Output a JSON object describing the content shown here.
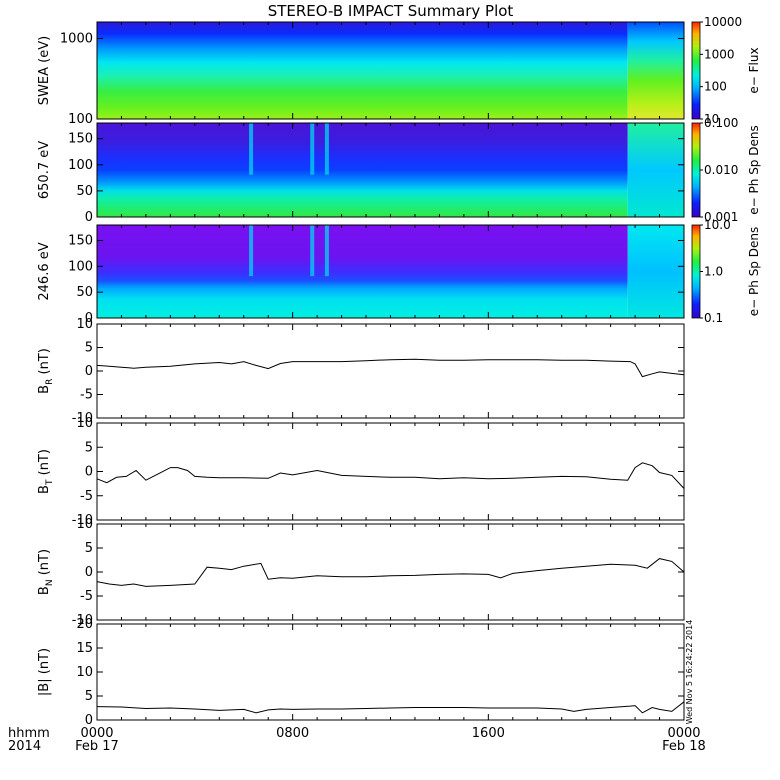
{
  "title": "STEREO-B IMPACT Summary Plot",
  "stamp": "Wed Nov 5 16:24:22 2014",
  "time_axis": {
    "label_line1": "hhmm",
    "label_line2": "2014",
    "ticks": [
      {
        "hour": 0,
        "top": "0000",
        "bottom": "Feb 17"
      },
      {
        "hour": 8,
        "top": "0800",
        "bottom": ""
      },
      {
        "hour": 16,
        "top": "1600",
        "bottom": ""
      },
      {
        "hour": 24,
        "top": "0000",
        "bottom": "Feb 18"
      }
    ],
    "range_hours": [
      0,
      24
    ]
  },
  "chart_data": [
    {
      "type": "heatmap",
      "ylabel": "SWEA (eV)",
      "yscale": "log",
      "ylim": [
        100,
        1600
      ],
      "yticks": [
        {
          "v": 100,
          "label": "100"
        },
        {
          "v": 1000,
          "label": "1000"
        }
      ],
      "colorbar": {
        "label": "e− Flux",
        "scale": "log",
        "ticks": [
          "10000",
          "1000",
          "100",
          "10"
        ],
        "palette": "rainbow"
      },
      "pattern": "flux high at low energies (green-yellow), decreasing to blue at high energies; band shifts upward after ~22:00"
    },
    {
      "type": "heatmap",
      "ylabel": "650.7 eV",
      "ylim": [
        0,
        180
      ],
      "yticks": [
        {
          "v": 0,
          "label": "0"
        },
        {
          "v": 50,
          "label": "50"
        },
        {
          "v": 100,
          "label": "100"
        },
        {
          "v": 150,
          "label": "150"
        }
      ],
      "colorbar": {
        "label": "e− Ph Sp Dens",
        "scale": "log",
        "ticks": [
          "0.100",
          "0.010",
          "0.001"
        ],
        "palette": "rainbow"
      },
      "pattern": "pitch angle distribution, green at low angles, blue-purple at high angles, strahl gaps near 06:00 and 09:00, change at ~22:30"
    },
    {
      "type": "heatmap",
      "ylabel": "246.6 eV",
      "ylim": [
        0,
        180
      ],
      "yticks": [
        {
          "v": 0,
          "label": "0"
        },
        {
          "v": 50,
          "label": "50"
        },
        {
          "v": 100,
          "label": "100"
        },
        {
          "v": 150,
          "label": "150"
        }
      ],
      "colorbar": {
        "label": "e− Ph Sp Dens",
        "scale": "log",
        "ticks": [
          "10.0",
          "1.0",
          "0.1"
        ],
        "palette": "rainbow"
      },
      "pattern": "cyan at low pitch angles, purple above ~80 deg, gaps near 06:30 and 09:00, broad cyan after ~22:30"
    },
    {
      "type": "line",
      "ylabel": "B_R (nT)",
      "ylabel_main": "B",
      "ylabel_sub": "R",
      "ylabel_unit": "(nT)",
      "ylim": [
        -10,
        10
      ],
      "yticks": [
        -10,
        -5,
        0,
        5,
        10
      ],
      "x": [
        0,
        0.5,
        1,
        1.5,
        2,
        3,
        4,
        5,
        5.5,
        6,
        6.5,
        7,
        7.5,
        8,
        9,
        10,
        11,
        12,
        13,
        14,
        15,
        16,
        17,
        18,
        19,
        20,
        21,
        21.8,
        22.0,
        22.3,
        22.7,
        23.0,
        23.5,
        24
      ],
      "y": [
        1.2,
        1.0,
        0.8,
        0.6,
        0.8,
        1.0,
        1.5,
        1.8,
        1.5,
        2.0,
        1.2,
        0.5,
        1.6,
        2.0,
        2.0,
        2.0,
        2.2,
        2.4,
        2.5,
        2.3,
        2.3,
        2.4,
        2.4,
        2.4,
        2.3,
        2.3,
        2.1,
        2.0,
        1.5,
        -1.2,
        -0.6,
        -0.2,
        -0.5,
        -0.8
      ]
    },
    {
      "type": "line",
      "ylabel": "B_T (nT)",
      "ylabel_main": "B",
      "ylabel_sub": "T",
      "ylabel_unit": "(nT)",
      "ylim": [
        -10,
        10
      ],
      "yticks": [
        -10,
        -5,
        0,
        5,
        10
      ],
      "x": [
        0,
        0.4,
        0.8,
        1.2,
        1.6,
        2,
        2.5,
        3,
        3.3,
        3.7,
        4,
        4.5,
        5,
        6,
        7,
        7.5,
        8,
        9,
        10,
        11,
        12,
        13,
        14,
        15,
        16,
        17,
        18,
        19,
        20,
        21,
        21.7,
        22.0,
        22.3,
        22.7,
        23.0,
        23.5,
        24
      ],
      "y": [
        -1.5,
        -2.3,
        -1.2,
        -1.0,
        0.2,
        -1.8,
        -0.5,
        0.8,
        0.8,
        0.2,
        -1.0,
        -1.2,
        -1.3,
        -1.3,
        -1.4,
        -0.3,
        -0.7,
        0.2,
        -0.8,
        -1.0,
        -1.2,
        -1.2,
        -1.5,
        -1.3,
        -1.5,
        -1.4,
        -1.2,
        -1.0,
        -1.1,
        -1.6,
        -1.8,
        0.8,
        1.8,
        1.2,
        -0.2,
        -0.8,
        -3.5
      ]
    },
    {
      "type": "line",
      "ylabel": "B_N (nT)",
      "ylabel_main": "B",
      "ylabel_sub": "N",
      "ylabel_unit": "(nT)",
      "ylim": [
        -10,
        10
      ],
      "yticks": [
        -10,
        -5,
        0,
        5,
        10
      ],
      "x": [
        0,
        0.5,
        1,
        1.5,
        2,
        3,
        4,
        4.5,
        5,
        5.5,
        6,
        6.7,
        7,
        7.5,
        8,
        9,
        10,
        11,
        12,
        13,
        14,
        15,
        16,
        16.5,
        17,
        18,
        19,
        20,
        21,
        22,
        22.5,
        23,
        23.5,
        24
      ],
      "y": [
        -2.0,
        -2.5,
        -2.8,
        -2.5,
        -3.0,
        -2.8,
        -2.5,
        1.0,
        0.8,
        0.5,
        1.2,
        1.8,
        -1.5,
        -1.2,
        -1.3,
        -0.8,
        -1.0,
        -1.0,
        -0.8,
        -0.7,
        -0.5,
        -0.4,
        -0.5,
        -1.2,
        -0.3,
        0.3,
        0.8,
        1.2,
        1.6,
        1.4,
        0.8,
        2.8,
        2.2,
        0.0
      ]
    },
    {
      "type": "line",
      "ylabel": "|B| (nT)",
      "ylabel_main": "|B|",
      "ylabel_sub": "",
      "ylabel_unit": "(nT)",
      "ylim": [
        0,
        20
      ],
      "yticks": [
        0,
        5,
        10,
        15,
        20
      ],
      "x": [
        0,
        1,
        2,
        3,
        4,
        5,
        6,
        6.5,
        7,
        7.5,
        8,
        9,
        10,
        11,
        12,
        13,
        14,
        15,
        16,
        17,
        18,
        19,
        19.5,
        20,
        21,
        21.8,
        22.0,
        22.3,
        22.7,
        23.0,
        23.5,
        24
      ],
      "y": [
        2.8,
        2.7,
        2.4,
        2.5,
        2.3,
        2.0,
        2.2,
        1.5,
        2.1,
        2.3,
        2.2,
        2.3,
        2.3,
        2.4,
        2.5,
        2.6,
        2.6,
        2.6,
        2.5,
        2.5,
        2.5,
        2.3,
        1.8,
        2.2,
        2.6,
        2.9,
        3.0,
        1.5,
        2.6,
        2.2,
        1.8,
        3.8
      ]
    }
  ]
}
